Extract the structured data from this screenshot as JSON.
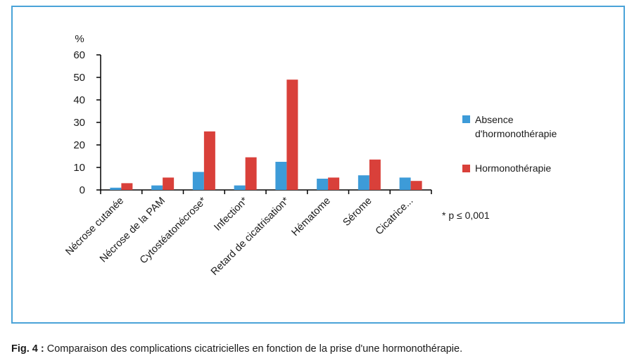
{
  "chart_data": {
    "type": "bar",
    "ylabel": "%",
    "ylim": [
      0,
      60
    ],
    "yticks": [
      0,
      10,
      20,
      30,
      40,
      50,
      60
    ],
    "categories": [
      "Nécrose cutanée",
      "Nécrose de la PAM",
      "Cytostéatonécrose*",
      "Infection*",
      "Retard de cicatrisation*",
      "Hématome",
      "Sérome",
      "Cicatrice..."
    ],
    "series": [
      {
        "name": "Absence d'hormonothérapie",
        "color": "#3d9bd8",
        "values": [
          1,
          2,
          8,
          2,
          12.5,
          5,
          6.5,
          5.5
        ]
      },
      {
        "name": "Hormonothérapie",
        "color": "#d9403a",
        "values": [
          3,
          5.5,
          26,
          14.5,
          49,
          5.5,
          13.5,
          4
        ]
      }
    ],
    "legend_position": "right",
    "note": "* p ≤ 0,001"
  },
  "legend": {
    "absence_line1": "Absence",
    "absence_line2": "d'hormonothérapie",
    "hormono": "Hormonothérapie"
  },
  "caption": {
    "label": "Fig. 4 :",
    "text": " Comparaison des complications cicatricielles en fonction de la prise d'une hormonothérapie."
  }
}
